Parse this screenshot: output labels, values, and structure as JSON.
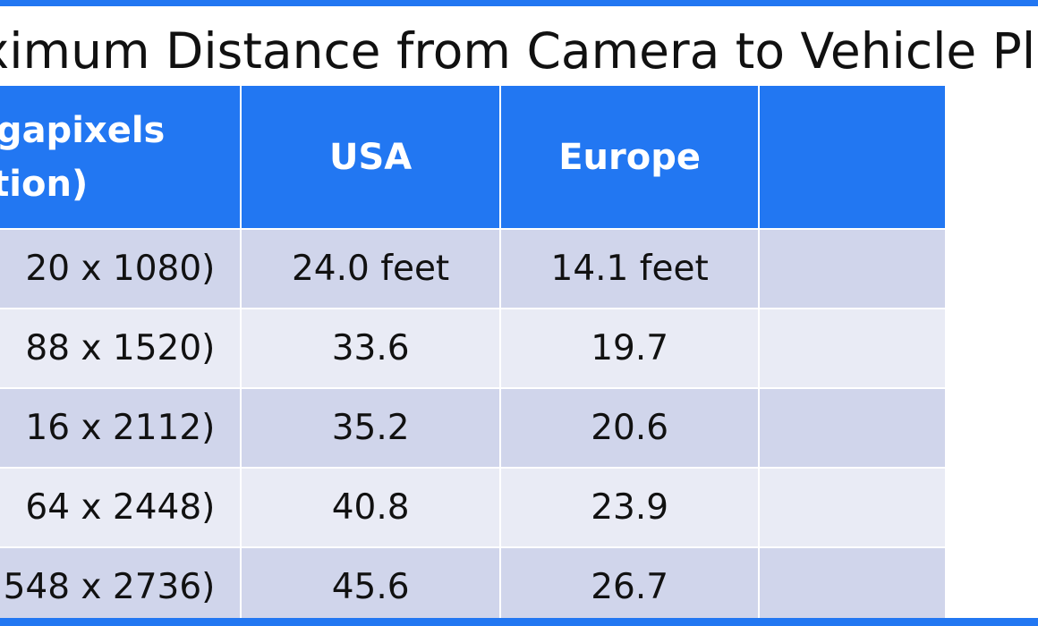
{
  "title": "aximum Distance from Camera to Vehicle Pla",
  "table": {
    "headers": {
      "resolution_line1": "Megapixels",
      "resolution_line2": "lution)",
      "usa": "USA",
      "europe": "Europe",
      "extra": ""
    },
    "rows": [
      {
        "resolution": "20 x 1080)",
        "usa": "24.0 feet",
        "europe": "14.1 feet",
        "extra": ""
      },
      {
        "resolution": "88 x 1520)",
        "usa": "33.6",
        "europe": "19.7",
        "extra": ""
      },
      {
        "resolution": "16 x 2112)",
        "usa": "35.2",
        "europe": "20.6",
        "extra": ""
      },
      {
        "resolution": "64 x 2448)",
        "usa": "40.8",
        "europe": "23.9",
        "extra": ""
      },
      {
        "resolution": "548 x 2736)",
        "usa": "45.6",
        "europe": "26.7",
        "extra": ""
      }
    ]
  },
  "colors": {
    "header_blue": "#2277f2",
    "row_dark": "#d0d5eb",
    "row_light": "#e9ebf5",
    "text": "#111111"
  }
}
